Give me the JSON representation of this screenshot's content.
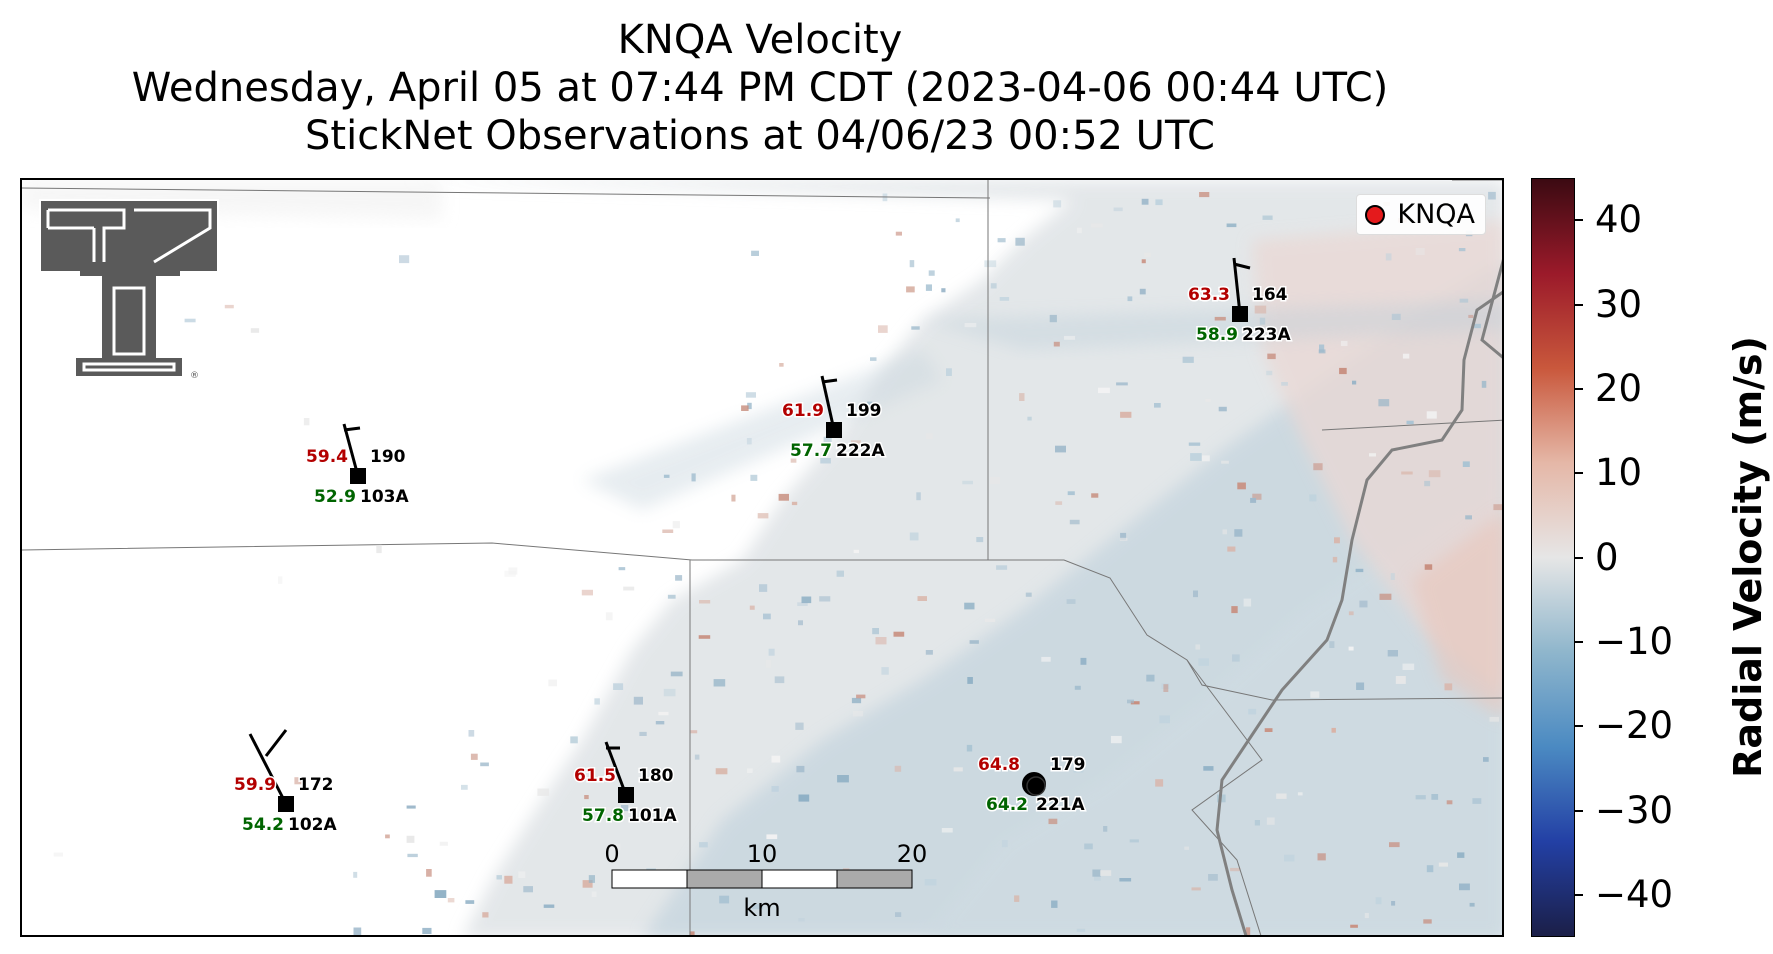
{
  "title": {
    "line1": "KNQA Velocity",
    "line2": "Wednesday, April 05 at 07:44 PM CDT (2023-04-06 00:44 UTC)",
    "line3": "StickNet Observations at 04/06/23 00:52 UTC"
  },
  "legend": {
    "label": "KNQA",
    "marker_color": "#e41a1c"
  },
  "colorbar": {
    "label": "Radial Velocity (m/s)",
    "range": [
      -45,
      45
    ],
    "ticks": [
      "40",
      "30",
      "20",
      "10",
      "0",
      "−10",
      "−20",
      "−30",
      "−40"
    ],
    "tick_values": [
      40,
      30,
      20,
      10,
      0,
      -10,
      -20,
      -30,
      -40
    ],
    "colors": [
      "#1b1f48",
      "#2340a5",
      "#4b8ac2",
      "#8fb6cc",
      "#e6e6e6",
      "#e5b7a7",
      "#c9583c",
      "#9b1a2a",
      "#3b0a12"
    ]
  },
  "stations": [
    {
      "id": "103A",
      "temp": "59.4",
      "dew": "52.9",
      "dir": "190"
    },
    {
      "id": "222A",
      "temp": "61.9",
      "dew": "57.7",
      "dir": "199"
    },
    {
      "id": "223A",
      "temp": "63.3",
      "dew": "58.9",
      "dir": "164"
    },
    {
      "id": "102A",
      "temp": "59.9",
      "dew": "54.2",
      "dir": "172"
    },
    {
      "id": "101A",
      "temp": "61.5",
      "dew": "57.8",
      "dir": "180"
    },
    {
      "id": "221A",
      "temp": "64.8",
      "dew": "64.2",
      "dir": "179"
    }
  ],
  "scale_bar": {
    "ticks": [
      "0",
      "10",
      "20"
    ],
    "unit": "km"
  },
  "colors": {
    "temp": "#b30000",
    "dew": "#006400",
    "logo": "#555555"
  },
  "logo": {
    "name": "double-t-logo",
    "mark": "®"
  }
}
